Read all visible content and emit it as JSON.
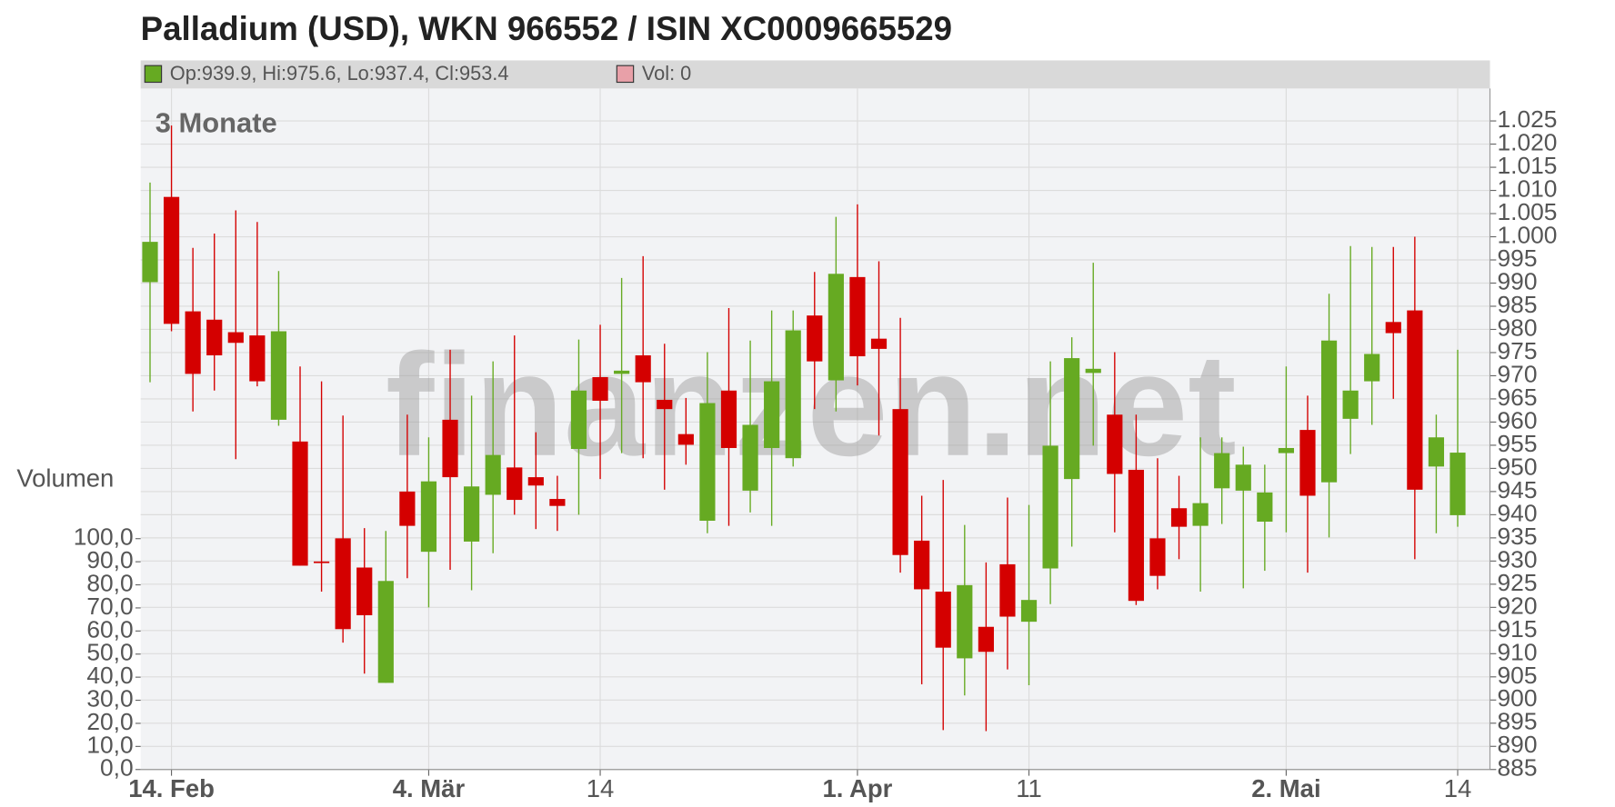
{
  "chart_data": {
    "type": "candlestick",
    "title": "Palladium (USD), WKN 966552 / ISIN XC0009665529",
    "legend": [
      {
        "name": "Op:939.9, Hi:975.6, Lo:937.4, Cl:953.4",
        "color": "#66aa22"
      },
      {
        "name": "Vol: 0",
        "color": "#e8a0a8"
      }
    ],
    "period_label": "3 Monate",
    "watermark": "finanzen.net",
    "volume_label": "Volumen",
    "categories": [
      null,
      "14. Feb",
      null,
      null,
      null,
      null,
      null,
      null,
      null,
      null,
      null,
      null,
      null,
      "4. Mär",
      null,
      null,
      null,
      null,
      null,
      null,
      null,
      "14",
      null,
      null,
      null,
      null,
      null,
      null,
      null,
      null,
      null,
      null,
      null,
      "1. Apr",
      null,
      null,
      null,
      null,
      null,
      null,
      null,
      "11",
      null,
      null,
      null,
      null,
      null,
      null,
      null,
      null,
      null,
      null,
      null,
      "2. Mai",
      null,
      null,
      null,
      null,
      null,
      null,
      null,
      "14"
    ],
    "up_color": "#66aa22",
    "down_color": "#d40000",
    "open": [
      990.2,
      1008.6,
      983.9,
      982.1,
      979.4,
      978.7,
      960.5,
      955.8,
      929.9,
      934.9,
      928.6,
      903.7,
      945,
      932,
      960.5,
      934.2,
      944.3,
      950.2,
      948.1,
      943.4,
      954.2,
      969.7,
      970.4,
      974.4,
      964.8,
      957.4,
      938.7,
      966.8,
      945.2,
      954.4,
      952.2,
      983,
      969,
      991.3,
      978,
      962.8,
      934.4,
      923.4,
      909,
      915.8,
      929.3,
      916.9,
      928.4,
      947.7,
      970.6,
      961.6,
      949.7,
      934.9,
      941.4,
      937.6,
      945.7,
      945.2,
      938.5,
      953.3,
      958.3,
      947,
      960.7,
      968.8,
      981.6,
      984.1,
      950.4,
      939.9
    ],
    "high": [
      1011.7,
      1024,
      997.6,
      1000.7,
      1005.7,
      1003.2,
      992.6,
      972,
      968.8,
      961.4,
      937.1,
      936.5,
      961.6,
      956.7,
      975.6,
      965.7,
      973.1,
      978.7,
      957.8,
      948.4,
      977.8,
      981,
      991.1,
      995.8,
      976.9,
      965.2,
      975.1,
      984.6,
      977.6,
      984.1,
      984.1,
      992.4,
      1004.3,
      1007,
      994.7,
      982.5,
      944.1,
      947.5,
      937.8,
      929.7,
      943.7,
      942.1,
      973.1,
      978.3,
      994.4,
      975.1,
      961.6,
      952.2,
      948.4,
      956.7,
      956.7,
      954.7,
      950.8,
      972,
      965.7,
      987.7,
      998,
      997.8,
      997.8,
      1000,
      961.6,
      975.6
    ],
    "low": [
      968.6,
      979.6,
      962.3,
      966.8,
      952,
      967.7,
      959.2,
      929,
      923.4,
      912.4,
      905.7,
      903.7,
      926.3,
      920,
      928.1,
      923.7,
      931.7,
      940,
      936.9,
      936.5,
      940,
      947.7,
      953.3,
      952.2,
      945.4,
      950.8,
      936,
      937.6,
      940.5,
      937.6,
      950.4,
      962.8,
      962.3,
      967.9,
      957.1,
      927.5,
      903.4,
      893.5,
      901,
      893.3,
      906.6,
      903.2,
      920.7,
      933.1,
      954.9,
      936.2,
      920.5,
      923.9,
      930.4,
      923.4,
      938,
      924.1,
      927.9,
      936.2,
      927.5,
      935.1,
      953.1,
      959.4,
      965,
      930.4,
      936,
      937.4
    ],
    "close": [
      998.9,
      981.2,
      970.4,
      974.4,
      977.1,
      968.8,
      979.6,
      929,
      929.7,
      915.3,
      918.3,
      925.7,
      937.6,
      947.2,
      948.1,
      946.1,
      952.9,
      943.2,
      946.3,
      941.9,
      966.8,
      964.6,
      971.1,
      968.6,
      962.8,
      955.1,
      964.1,
      954.4,
      959.4,
      968.8,
      979.8,
      973.1,
      992,
      974.2,
      975.8,
      931.3,
      923.9,
      911.3,
      924.8,
      910.4,
      918,
      921.6,
      954.9,
      973.8,
      971.5,
      948.8,
      921.4,
      926.8,
      937.4,
      942.5,
      953.3,
      950.8,
      944.8,
      954.4,
      944.1,
      977.6,
      966.8,
      974.7,
      979.2,
      945.4,
      956.7,
      953.4
    ],
    "ylim": [
      885,
      1032
    ],
    "yticks": [
      885,
      890,
      895,
      900,
      905,
      910,
      915,
      920,
      925,
      930,
      935,
      940,
      945,
      950,
      955,
      960,
      965,
      970,
      975,
      980,
      985,
      990,
      995,
      {
        "value": 1000,
        "label": "1.000"
      },
      {
        "value": 1005,
        "label": "1.005"
      },
      {
        "value": 1010,
        "label": "1.010"
      },
      {
        "value": 1015,
        "label": "1.015"
      },
      {
        "value": 1020,
        "label": "1.020"
      },
      {
        "value": 1025,
        "label": "1.025"
      }
    ],
    "y2lim": [
      0,
      295
    ],
    "y2ticks": [
      {
        "value": 0,
        "label": "0,0"
      },
      {
        "value": 10,
        "label": "10,0"
      },
      {
        "value": 20,
        "label": "20,0"
      },
      {
        "value": 30,
        "label": "30,0"
      },
      {
        "value": 40,
        "label": "40,0"
      },
      {
        "value": 50,
        "label": "50,0"
      },
      {
        "value": 60,
        "label": "60,0"
      },
      {
        "value": 70,
        "label": "70,0"
      },
      {
        "value": 80,
        "label": "80,0"
      },
      {
        "value": 90,
        "label": "90,0"
      },
      {
        "value": 100,
        "label": "100,0"
      }
    ],
    "grid": true
  }
}
